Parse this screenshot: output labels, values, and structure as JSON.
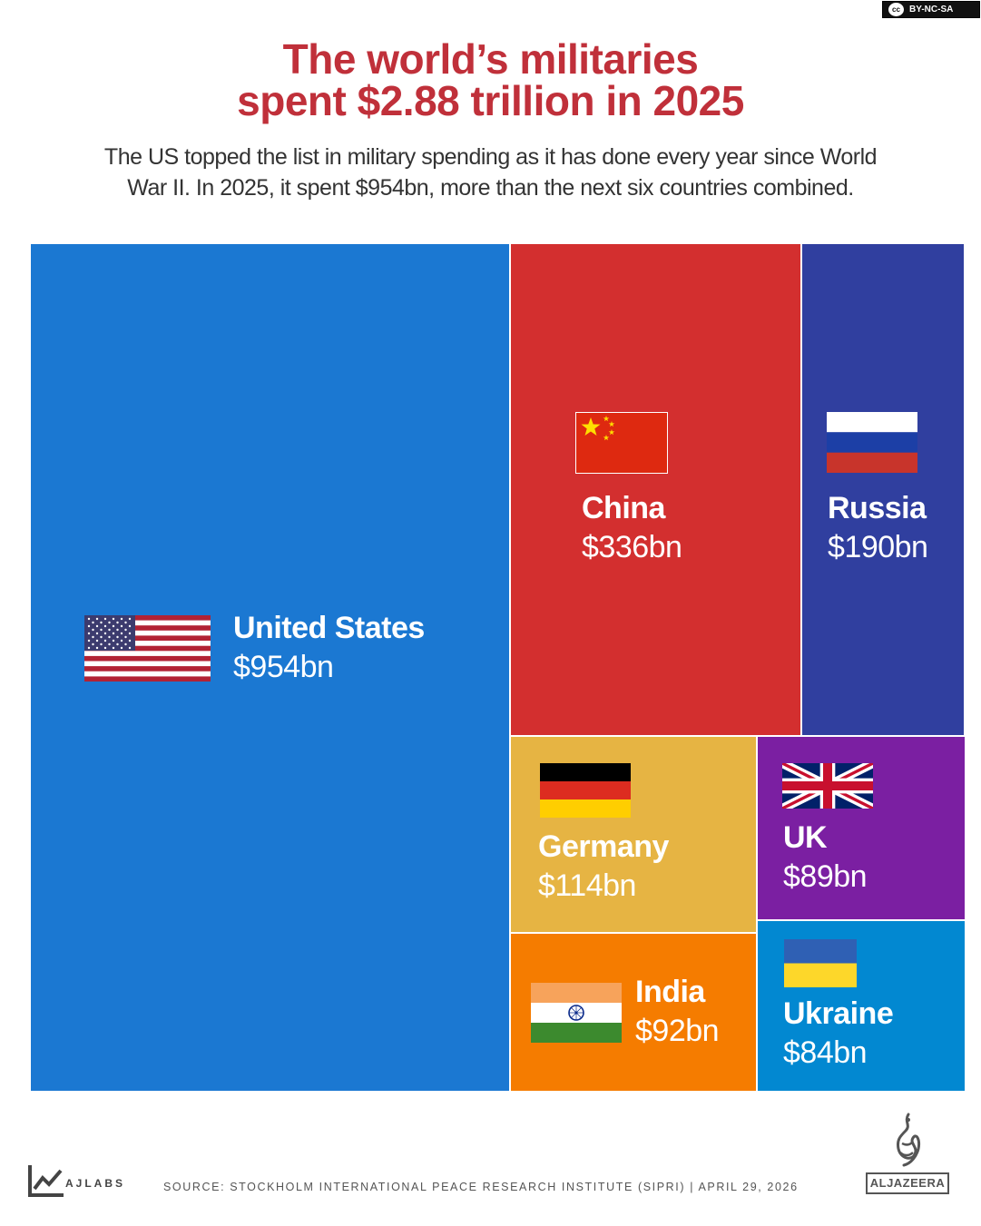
{
  "license": "BY-NC-SA",
  "license_badge": "cc",
  "title": {
    "line1": "The world’s militaries",
    "line2": "spent $2.88 trillion in 2025"
  },
  "subtitle": {
    "line1": "The US topped the list in military spending as it has done every year since World",
    "line2": "War II. In 2025, it spent $954bn, more than the next six countries combined."
  },
  "chart_data": {
    "type": "treemap",
    "unit": "billion USD",
    "items": [
      {
        "name": "United States",
        "label": "$954bn",
        "value": 954,
        "color": "#1b78d2"
      },
      {
        "name": "China",
        "label": "$336bn",
        "value": 336,
        "color": "#d32f2f"
      },
      {
        "name": "Russia",
        "label": "$190bn",
        "value": 190,
        "color": "#303f9f"
      },
      {
        "name": "Germany",
        "label": "$114bn",
        "value": 114,
        "color": "#e6b443"
      },
      {
        "name": "UK",
        "label": "$89bn",
        "value": 89,
        "color": "#7b1fa2"
      },
      {
        "name": "India",
        "label": "$92bn",
        "value": 92,
        "color": "#f57c00"
      },
      {
        "name": "Ukraine",
        "label": "$84bn",
        "value": 84,
        "color": "#0288d1"
      }
    ]
  },
  "footer": {
    "brand": "AJLABS",
    "source": "SOURCE: STOCKHOLM INTERNATIONAL PEACE RESEARCH INSTITUTE (SIPRI)  |  APRIL 29, 2026",
    "logo_text": "ALJAZEERA"
  },
  "icons": {
    "license": "creative-commons-icon",
    "ajlabs": "ajlabs-chart-icon",
    "aljazeera": "aljazeera-calligraphy-icon"
  }
}
